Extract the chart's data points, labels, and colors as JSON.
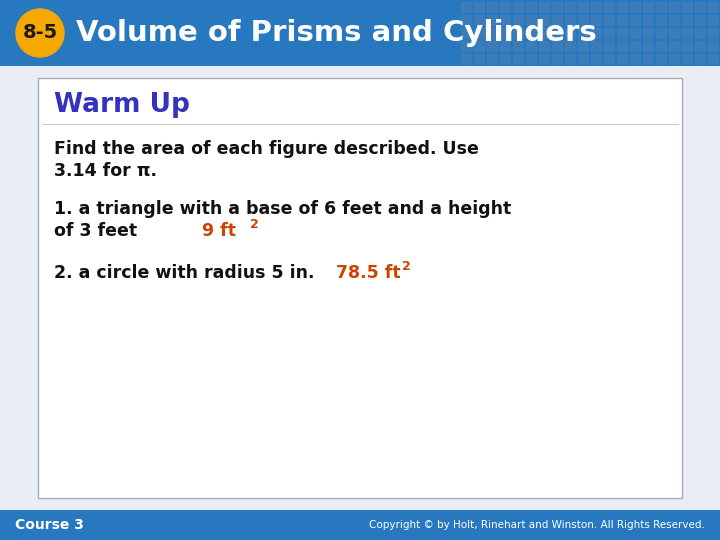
{
  "header_bg_color": "#2878c0",
  "header_text": "Volume of Prisms and Cylinders",
  "header_text_color": "#ffffff",
  "header_badge_text": "8-5",
  "header_badge_bg": "#f5a800",
  "header_badge_text_color": "#1a1a1a",
  "body_bg_color": "#e8eef4",
  "card_bg_color": "#ffffff",
  "card_border_color": "#aaaaaa",
  "warmup_title": "Warm Up",
  "warmup_title_color": "#3333bb",
  "instruction_line1": "Find the area of each figure described. Use",
  "instruction_line2": "3.14 for π.",
  "q1_line1": "1. a triangle with a base of 6 feet and a height",
  "q1_line2": "of 3 feet",
  "q1_answer": "9 ft",
  "q1_exp": "2",
  "q2_line": "2. a circle with radius 5 in.",
  "q2_answer": "78.5 ft",
  "q2_exp": "2",
  "answer_color": "#cc4400",
  "body_text_color": "#111111",
  "footer_bg_color": "#2878c0",
  "footer_left": "Course 3",
  "footer_right": "Copyright © by Holt, Rinehart and Winston. All Rights Reserved.",
  "footer_text_color": "#ffffff",
  "grid_color": "#4a7fb5",
  "fig_width": 7.2,
  "fig_height": 5.4
}
